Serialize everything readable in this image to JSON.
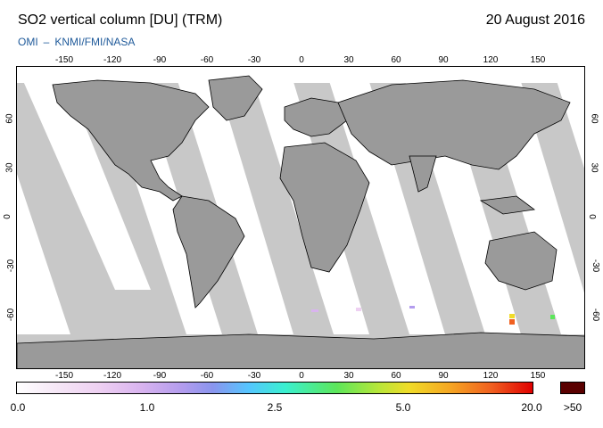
{
  "header": {
    "title": "SO2 vertical column [DU] (TRM)",
    "date": "20 August 2016",
    "credit_left": "OMI",
    "credit_sep": "–",
    "credit_right": "KNMI/FMI/NASA"
  },
  "map": {
    "lon_ticks": [
      "-150",
      "-120",
      "-90",
      "-60",
      "-30",
      "0",
      "30",
      "60",
      "90",
      "120",
      "150"
    ],
    "lat_ticks": [
      "60",
      "30",
      "0",
      "-30",
      "-60"
    ],
    "colors": {
      "no_data": "#c8c8c8",
      "land": "#9a9a9a",
      "retrieved": "#ffffff",
      "coast": "#000000"
    }
  },
  "colorbar": {
    "labels": [
      "0.0",
      "1.0",
      "2.5",
      "5.0",
      "20.0"
    ],
    "over_label": ">50",
    "over_color": "#5a0000"
  }
}
